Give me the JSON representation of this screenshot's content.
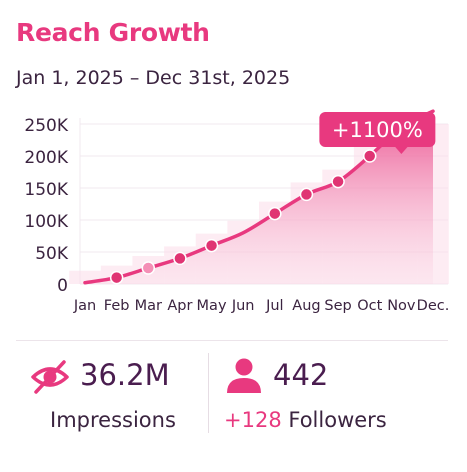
{
  "header": {
    "title": "Reach Growth",
    "date_range": "Jan 1, 2025 – Dec 31st, 2025"
  },
  "chart_data": {
    "type": "line",
    "categories": [
      "Jan",
      "Feb",
      "Mar",
      "Apr",
      "May",
      "Jun",
      "Jul",
      "Aug",
      "Sep",
      "Oct",
      "Nov",
      "Dec."
    ],
    "values": [
      2000,
      10000,
      25000,
      40000,
      60000,
      80000,
      110000,
      140000,
      160000,
      200000,
      245000,
      270000
    ],
    "marked_points": [
      1,
      2,
      3,
      4,
      6,
      7,
      8,
      9
    ],
    "highlighted_point": 2,
    "ylim": [
      0,
      250000
    ],
    "yticks": [
      0,
      50000,
      100000,
      150000,
      200000,
      250000
    ],
    "ytick_labels": [
      "0",
      "50K",
      "100K",
      "150K",
      "200K",
      "250K"
    ],
    "callout": "+1100%",
    "colors": {
      "line": "#e8397f",
      "marker": "#e03473",
      "marker_highlight": "#f48fb6",
      "area_top": "#e8397f",
      "bars": "#fbdde9",
      "callout_bg": "#e8397f",
      "callout_text": "#ffffff"
    }
  },
  "stats": {
    "impressions": {
      "icon": "eye-icon",
      "value": "36.2M",
      "label": "Impressions"
    },
    "followers": {
      "icon": "user-icon",
      "value": "442",
      "change": "+128",
      "label": "Followers"
    }
  }
}
